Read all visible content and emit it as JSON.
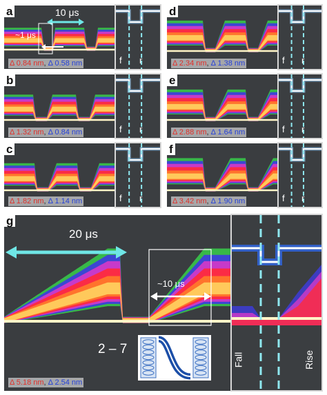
{
  "panels": [
    {
      "id": "a",
      "label": "a",
      "delta_red": "Δ 0.84 nm",
      "delta_blue": "Δ 0.58 nm"
    },
    {
      "id": "b",
      "label": "b",
      "delta_red": "Δ 1.32 nm",
      "delta_blue": "Δ 0.84 nm"
    },
    {
      "id": "c",
      "label": "c",
      "delta_red": "Δ 1.82 nm",
      "delta_blue": "Δ 1.14 nm"
    },
    {
      "id": "d",
      "label": "d",
      "delta_red": "Δ 2.34 nm",
      "delta_blue": "Δ 1.38 nm"
    },
    {
      "id": "e",
      "label": "e",
      "delta_red": "Δ 2.88 nm",
      "delta_blue": "Δ 1.64 nm"
    },
    {
      "id": "f",
      "label": "f",
      "delta_red": "Δ 3.42 nm",
      "delta_blue": "Δ 1.90 nm"
    },
    {
      "id": "g",
      "label": "g",
      "delta_red": "Δ 5.18 nm",
      "delta_blue": "Δ 2.54 nm"
    }
  ],
  "separator": ",",
  "annotations": {
    "a_period": "10 μs",
    "a_edge": "~1 μs",
    "g_period": "20 μs",
    "g_edge": "~10 μs",
    "g_range": "2 – 7"
  },
  "inset_labels": {
    "fall_short": "f",
    "rise_short": "r",
    "fall": "Fall",
    "rise": "Rise"
  },
  "colors": {
    "background": "#3a3d40",
    "red": "#e0302a",
    "blue": "#2440d8",
    "cyan_arrow": "#6fe6e6",
    "trace_core": "#ffe9a8"
  }
}
